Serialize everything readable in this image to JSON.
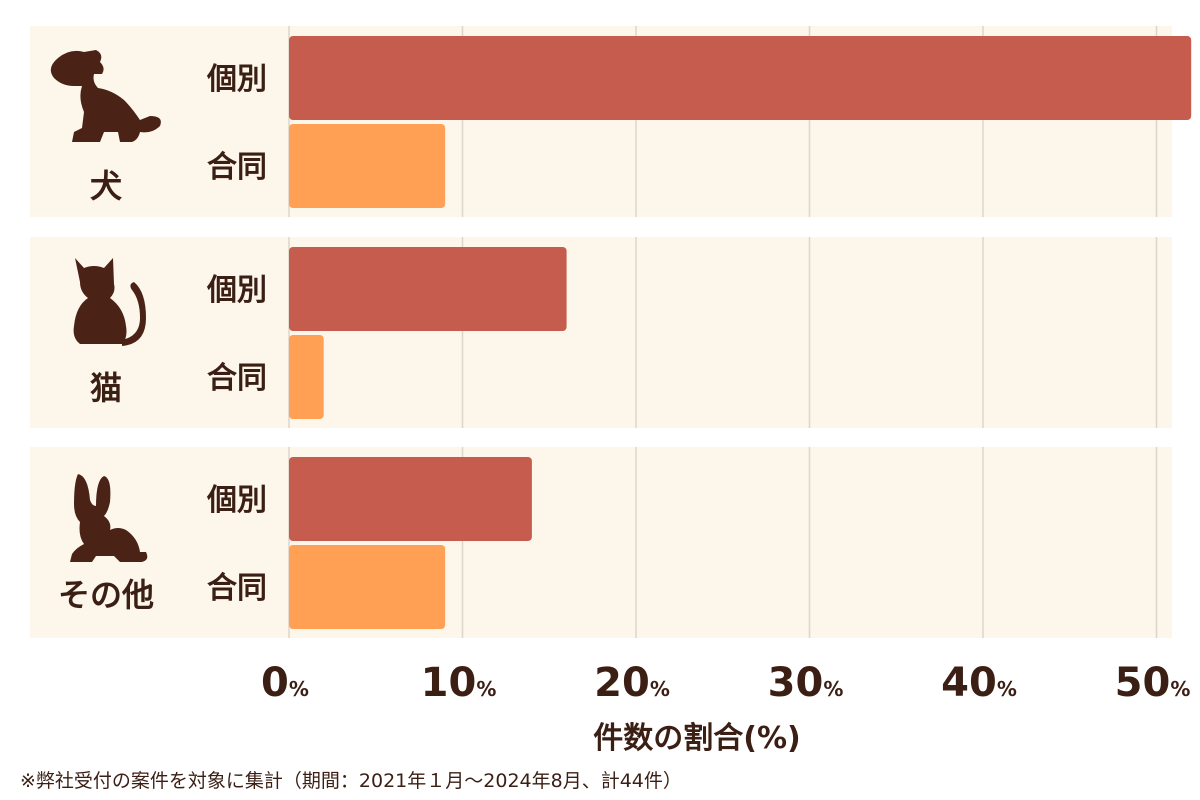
{
  "chart_data": {
    "type": "bar",
    "orientation": "horizontal",
    "groups": [
      {
        "label": "犬",
        "icon": "dog-icon",
        "bars": [
          {
            "label": "個別",
            "value": 52
          },
          {
            "label": "合同",
            "value": 9
          }
        ]
      },
      {
        "label": "猫",
        "icon": "cat-icon",
        "bars": [
          {
            "label": "個別",
            "value": 16
          },
          {
            "label": "合同",
            "value": 2
          }
        ]
      },
      {
        "label": "その他",
        "icon": "rabbit-icon",
        "bars": [
          {
            "label": "個別",
            "value": 14
          },
          {
            "label": "合同",
            "value": 9
          }
        ]
      }
    ],
    "series_colors": {
      "個別": "#c65c4e",
      "合同": "#ffa055"
    },
    "xlim": [
      0,
      52
    ],
    "xticks": [
      {
        "value": 0,
        "label": "0",
        "unit": "%"
      },
      {
        "value": 10,
        "label": "10",
        "unit": "%"
      },
      {
        "value": 20,
        "label": "20",
        "unit": "%"
      },
      {
        "value": 30,
        "label": "30",
        "unit": "%"
      },
      {
        "value": 40,
        "label": "40",
        "unit": "%"
      },
      {
        "value": 50,
        "label": "50",
        "unit": "%"
      }
    ],
    "xlabel": "件数の割合(%)",
    "grid": true,
    "footnote": "※弊社受付の案件を対象に集計（期間：2021年１月～2024年8月、計44件）"
  }
}
